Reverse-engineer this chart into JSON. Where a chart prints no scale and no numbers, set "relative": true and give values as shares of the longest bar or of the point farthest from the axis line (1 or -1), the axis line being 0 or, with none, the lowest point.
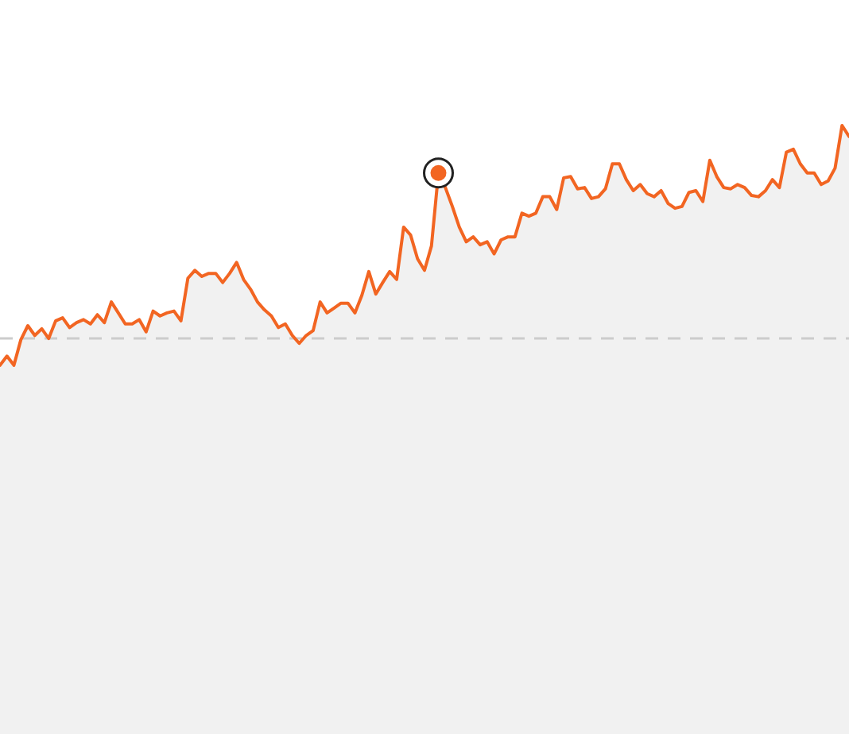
{
  "chart_data": {
    "type": "area",
    "relative": true,
    "categories": [
      null,
      null,
      null,
      null,
      null,
      null,
      null,
      null,
      null,
      null,
      null,
      null,
      null,
      null,
      null,
      null,
      null,
      null,
      null,
      null,
      null,
      null,
      null,
      null,
      null,
      null,
      null,
      null,
      null,
      null,
      null,
      null,
      null,
      null,
      null,
      null,
      null,
      null,
      null,
      null,
      null,
      null,
      null,
      null,
      null,
      null,
      null,
      null,
      null,
      null,
      null,
      null,
      null,
      null,
      null,
      null,
      null,
      null,
      null,
      null,
      null,
      null,
      null,
      null,
      null,
      null,
      null,
      null,
      null,
      null,
      null,
      null,
      null,
      null,
      null,
      null,
      null,
      null,
      null,
      null,
      null,
      null,
      null,
      null,
      null,
      null,
      null,
      null,
      null,
      null,
      null,
      null,
      null,
      null,
      null,
      null,
      null,
      null,
      null,
      null,
      null,
      null,
      null,
      null,
      null,
      null,
      null,
      null,
      null,
      null,
      null,
      null,
      null,
      null,
      null,
      null,
      null,
      null,
      null,
      null,
      null,
      null,
      null
    ],
    "series": [
      {
        "color": "#f26522",
        "values": [
          0.606,
          0.621,
          0.606,
          0.648,
          0.671,
          0.655,
          0.666,
          0.65,
          0.679,
          0.684,
          0.668,
          0.676,
          0.681,
          0.674,
          0.689,
          0.676,
          0.71,
          0.692,
          0.674,
          0.674,
          0.681,
          0.661,
          0.695,
          0.687,
          0.692,
          0.695,
          0.679,
          0.749,
          0.762,
          0.752,
          0.757,
          0.757,
          0.742,
          0.757,
          0.775,
          0.747,
          0.731,
          0.71,
          0.697,
          0.687,
          0.668,
          0.674,
          0.655,
          0.642,
          0.655,
          0.663,
          0.71,
          0.692,
          0.7,
          0.708,
          0.708,
          0.692,
          0.721,
          0.76,
          0.723,
          0.742,
          0.76,
          0.747,
          0.833,
          0.82,
          0.781,
          0.762,
          0.802,
          0.922,
          0.898,
          0.867,
          0.833,
          0.809,
          0.817,
          0.804,
          0.809,
          0.789,
          0.812,
          0.817,
          0.817,
          0.856,
          0.851,
          0.856,
          0.883,
          0.883,
          0.862,
          0.914,
          0.916,
          0.896,
          0.898,
          0.88,
          0.883,
          0.896,
          0.937,
          0.937,
          0.911,
          0.893,
          0.903,
          0.888,
          0.883,
          0.893,
          0.872,
          0.864,
          0.867,
          0.89,
          0.893,
          0.875,
          0.943,
          0.916,
          0.898,
          0.896,
          0.903,
          0.898,
          0.885,
          0.883,
          0.893,
          0.911,
          0.898,
          0.956,
          0.961,
          0.937,
          0.922,
          0.922,
          0.903,
          0.909,
          0.93,
          1,
          0.982
        ]
      },
      {
        "type": "line",
        "color": "#f26522",
        "marker": "circle",
        "values": [
          null,
          null,
          null,
          null,
          null,
          null,
          null,
          null,
          null,
          null,
          null,
          null,
          null,
          null,
          null,
          null,
          null,
          null,
          null,
          null,
          null,
          null,
          null,
          null,
          null,
          null,
          null,
          null,
          null,
          null,
          null,
          null,
          null,
          null,
          null,
          null,
          null,
          null,
          null,
          null,
          null,
          null,
          null,
          null,
          null,
          null,
          null,
          null,
          null,
          null,
          null,
          null,
          null,
          null,
          null,
          null,
          null,
          null,
          null,
          null,
          null,
          null,
          null,
          0.922,
          null,
          null,
          null,
          null,
          null,
          null,
          null,
          null,
          null,
          null,
          null,
          null,
          null,
          null,
          null,
          null,
          null,
          null,
          null,
          null,
          null,
          null,
          null,
          null,
          null,
          null,
          null,
          null,
          null,
          null,
          null,
          null,
          null,
          null,
          null,
          null,
          null,
          null,
          null,
          null,
          null,
          null,
          null,
          null,
          null,
          null,
          null,
          null,
          null,
          null,
          null,
          null,
          null,
          null,
          null,
          null,
          null,
          null,
          null
        ]
      }
    ],
    "ref_lines": [
      {
        "axis": "y",
        "value": 0.65,
        "color": "#cccccc",
        "line_style": "dashed"
      }
    ]
  }
}
